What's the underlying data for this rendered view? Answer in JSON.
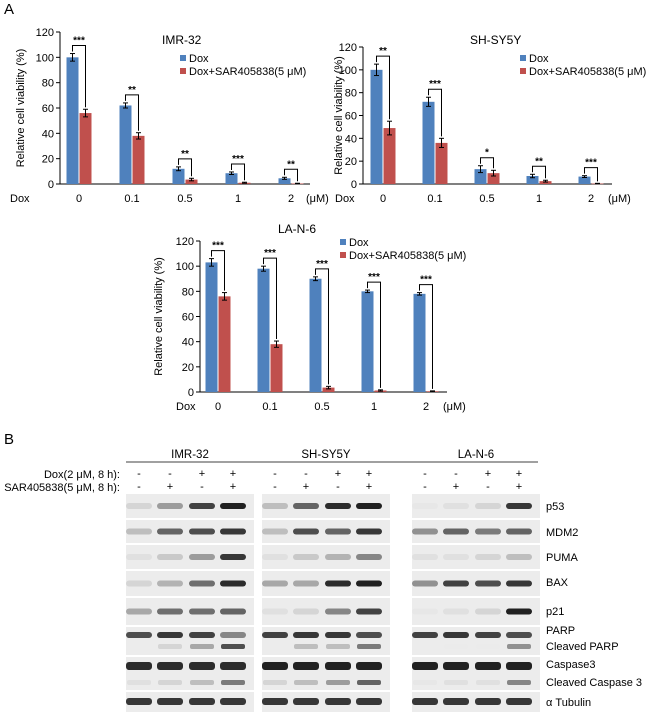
{
  "panel_labels": {
    "a": "A",
    "b": "B"
  },
  "legend": {
    "dox": "Dox",
    "combo": "Dox+SAR405838(5 μM)"
  },
  "colors": {
    "dox": "#4f81bd",
    "combo": "#c0504d",
    "axis": "#000000"
  },
  "dose_prefix": "Dox",
  "dose_unit": "(μM)",
  "chart_data": [
    {
      "type": "bar",
      "title": "IMR-32",
      "ylabel": "Relative cell viability (%)",
      "xlabel": "Dox (μM)",
      "categories": [
        "0",
        "0.1",
        "0.5",
        "1",
        "2"
      ],
      "yticks": [
        "0",
        "20",
        "40",
        "60",
        "80",
        "100",
        "120"
      ],
      "ylim": [
        0,
        120
      ],
      "series": [
        {
          "name": "Dox",
          "values": [
            100,
            62,
            12,
            8.5,
            4.5
          ],
          "errors": [
            3,
            2,
            1.5,
            1,
            0.8
          ]
        },
        {
          "name": "Dox+SAR405838(5 μM)",
          "values": [
            56,
            38,
            3.5,
            1,
            0.4
          ],
          "errors": [
            3,
            2.5,
            1,
            0.4,
            0.2
          ]
        }
      ],
      "significance": [
        "***",
        "**",
        "**",
        "***",
        "**"
      ]
    },
    {
      "type": "bar",
      "title": "SH-SY5Y",
      "ylabel": "Relative cell viability (%)",
      "xlabel": "Dox (μM)",
      "categories": [
        "0",
        "0.1",
        "0.5",
        "1",
        "2"
      ],
      "yticks": [
        "0",
        "20",
        "40",
        "60",
        "80",
        "100",
        "120"
      ],
      "ylim": [
        0,
        120
      ],
      "series": [
        {
          "name": "Dox",
          "values": [
            100,
            72,
            13,
            7,
            6.5
          ],
          "errors": [
            5,
            4,
            3,
            1.5,
            0.8
          ]
        },
        {
          "name": "Dox+SAR405838(5 μM)",
          "values": [
            49,
            36,
            9.5,
            2.5,
            0.4
          ],
          "errors": [
            6,
            4,
            2.5,
            0.8,
            0.2
          ]
        }
      ],
      "significance": [
        "**",
        "***",
        "*",
        "**",
        "***"
      ]
    },
    {
      "type": "bar",
      "title": "LA-N-6",
      "ylabel": "Relative cell viability (%)",
      "xlabel": "Dox (μM)",
      "categories": [
        "0",
        "0.1",
        "0.5",
        "1",
        "2"
      ],
      "yticks": [
        "0",
        "20",
        "40",
        "60",
        "80",
        "100",
        "120"
      ],
      "ylim": [
        0,
        120
      ],
      "series": [
        {
          "name": "Dox",
          "values": [
            103,
            98,
            90,
            80,
            78
          ],
          "errors": [
            3,
            2,
            1.5,
            1,
            1
          ]
        },
        {
          "name": "Dox+SAR405838(5 μM)",
          "values": [
            76,
            38,
            3.5,
            1.2,
            0.6
          ],
          "errors": [
            3,
            2.5,
            1,
            0.5,
            0.3
          ]
        }
      ],
      "significance": [
        "***",
        "***",
        "***",
        "***",
        "***"
      ]
    }
  ],
  "blot": {
    "cell_lines": [
      "IMR-32",
      "SH-SY5Y",
      "LA-N-6"
    ],
    "treatment_labels": [
      "Dox(2 μM, 8 h):",
      "SAR405838(5 μM, 8 h):"
    ],
    "treatment_dox": [
      "-",
      "-",
      "+",
      "+"
    ],
    "treatment_sar": [
      "-",
      "+",
      "-",
      "+"
    ],
    "proteins": [
      "p53",
      "MDM2",
      "PUMA",
      "BAX",
      "p21",
      "PARP",
      "Cleaved PARP",
      "Caspase3",
      "Cleaved Caspase 3",
      "α Tubulin"
    ],
    "intensities": {
      "p53": [
        [
          0.1,
          0.35,
          0.75,
          0.9
        ],
        [
          0.2,
          0.6,
          0.85,
          0.9
        ],
        [
          0.02,
          0.05,
          0.1,
          0.8
        ]
      ],
      "MDM2": [
        [
          0.2,
          0.6,
          0.7,
          0.8
        ],
        [
          0.2,
          0.7,
          0.6,
          0.8
        ],
        [
          0.4,
          0.6,
          0.5,
          0.6
        ]
      ],
      "PUMA": [
        [
          0.05,
          0.15,
          0.35,
          0.8
        ],
        [
          0.05,
          0.15,
          0.25,
          0.45
        ],
        [
          0.05,
          0.05,
          0.1,
          0.2
        ]
      ],
      "BAX": [
        [
          0.1,
          0.25,
          0.55,
          0.85
        ],
        [
          0.3,
          0.3,
          0.85,
          0.9
        ],
        [
          0.4,
          0.75,
          0.7,
          0.8
        ]
      ],
      "p21": [
        [
          0.3,
          0.55,
          0.55,
          0.6
        ],
        [
          0.05,
          0.1,
          0.45,
          0.75
        ],
        [
          0.02,
          0.05,
          0.1,
          0.9
        ]
      ],
      "PARP": [
        [
          0.7,
          0.8,
          0.75,
          0.45
        ],
        [
          0.75,
          0.8,
          0.8,
          0.7
        ],
        [
          0.75,
          0.8,
          0.75,
          0.7
        ]
      ],
      "Caspase3": [
        [
          0.85,
          0.85,
          0.85,
          0.85
        ],
        [
          0.9,
          0.9,
          0.9,
          0.9
        ],
        [
          0.9,
          0.9,
          0.9,
          0.9
        ]
      ],
      "Tubulin": [
        [
          0.8,
          0.8,
          0.8,
          0.8
        ],
        [
          0.8,
          0.8,
          0.8,
          0.8
        ],
        [
          0.8,
          0.8,
          0.8,
          0.8
        ]
      ]
    }
  }
}
